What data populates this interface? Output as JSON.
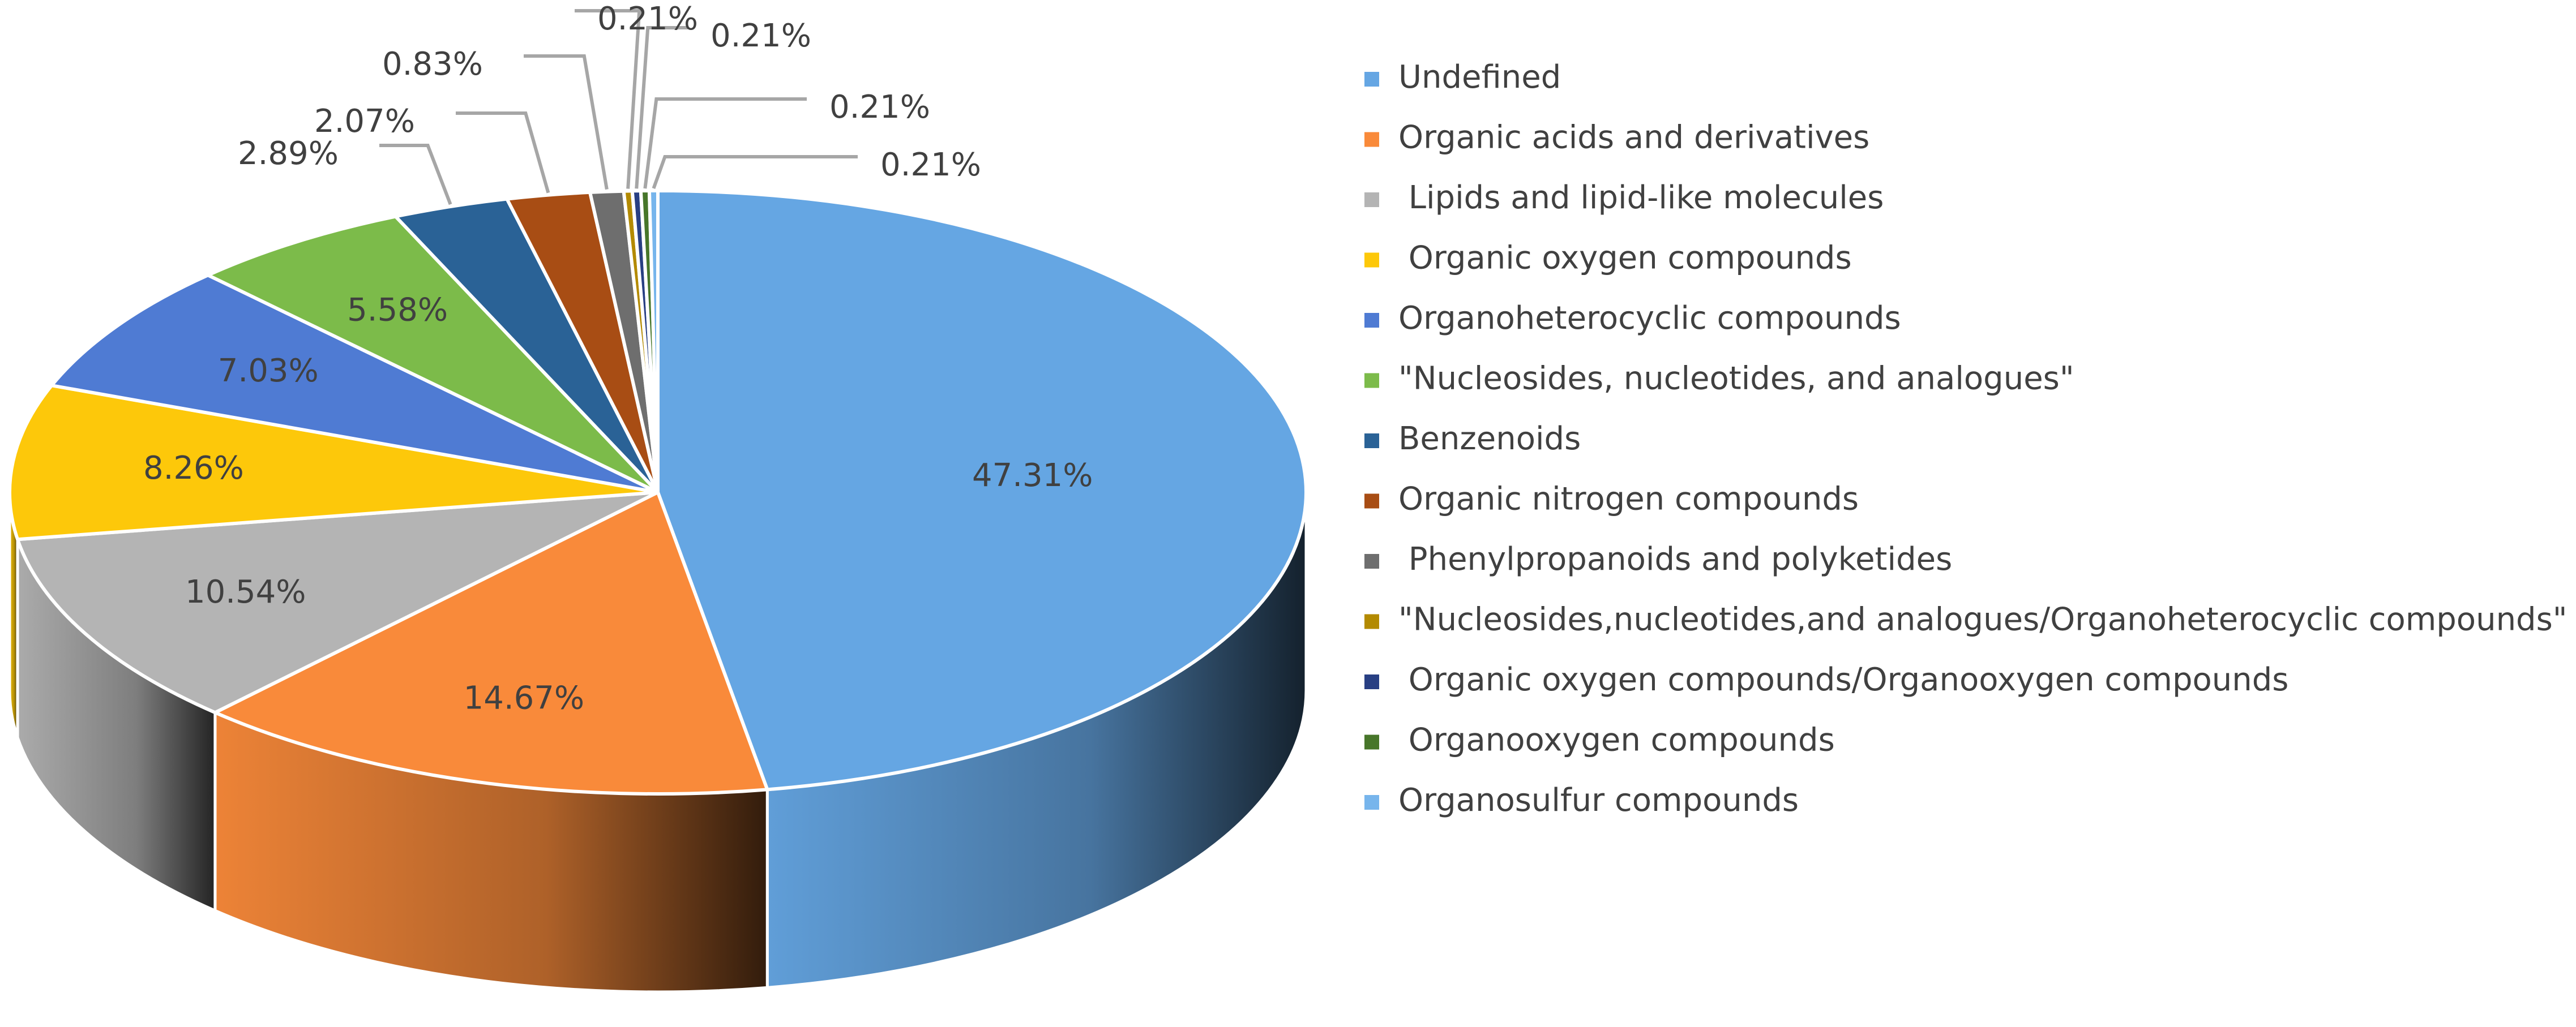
{
  "chart_data": {
    "type": "pie",
    "style": "3d",
    "legend_position": "right",
    "slices": [
      {
        "label": "Undefined",
        "value": 47.31,
        "value_label": "47.31%",
        "color": "#65a6e3"
      },
      {
        "label": "Organic acids and derivatives",
        "value": 14.67,
        "value_label": "14.67%",
        "color": "#f98a3a"
      },
      {
        "label": " Lipids and lipid-like molecules",
        "value": 10.54,
        "value_label": "10.54%",
        "color": "#b4b4b4"
      },
      {
        "label": " Organic oxygen compounds",
        "value": 8.26,
        "value_label": "8.26%",
        "color": "#fdc80a"
      },
      {
        "label": "Organoheterocyclic compounds",
        "value": 7.03,
        "value_label": "7.03%",
        "color": "#4f7bd3"
      },
      {
        "label": "\"Nucleosides, nucleotides, and analogues\"",
        "value": 5.58,
        "value_label": "5.58%",
        "color": "#7cbb4a"
      },
      {
        "label": "Benzenoids",
        "value": 2.89,
        "value_label": "2.89%",
        "color": "#2a6296"
      },
      {
        "label": "Organic nitrogen compounds",
        "value": 2.07,
        "value_label": "2.07%",
        "color": "#a84d14"
      },
      {
        "label": " Phenylpropanoids and polyketides",
        "value": 0.83,
        "value_label": "0.83%",
        "color": "#6e6e6e"
      },
      {
        "label": "\"Nucleosides,nucleotides,and analogues/Organoheterocyclic compounds\"",
        "value": 0.21,
        "value_label": "0.21%",
        "color": "#b38a00"
      },
      {
        "label": " Organic oxygen compounds/Organooxygen compounds",
        "value": 0.21,
        "value_label": "0.21%",
        "color": "#283f83"
      },
      {
        "label": " Organooxygen compounds",
        "value": 0.21,
        "value_label": "0.21%",
        "color": "#47762a"
      },
      {
        "label": "Organosulfur compounds",
        "value": 0.21,
        "value_label": "0.21%",
        "color": "#77b5ec"
      }
    ]
  }
}
